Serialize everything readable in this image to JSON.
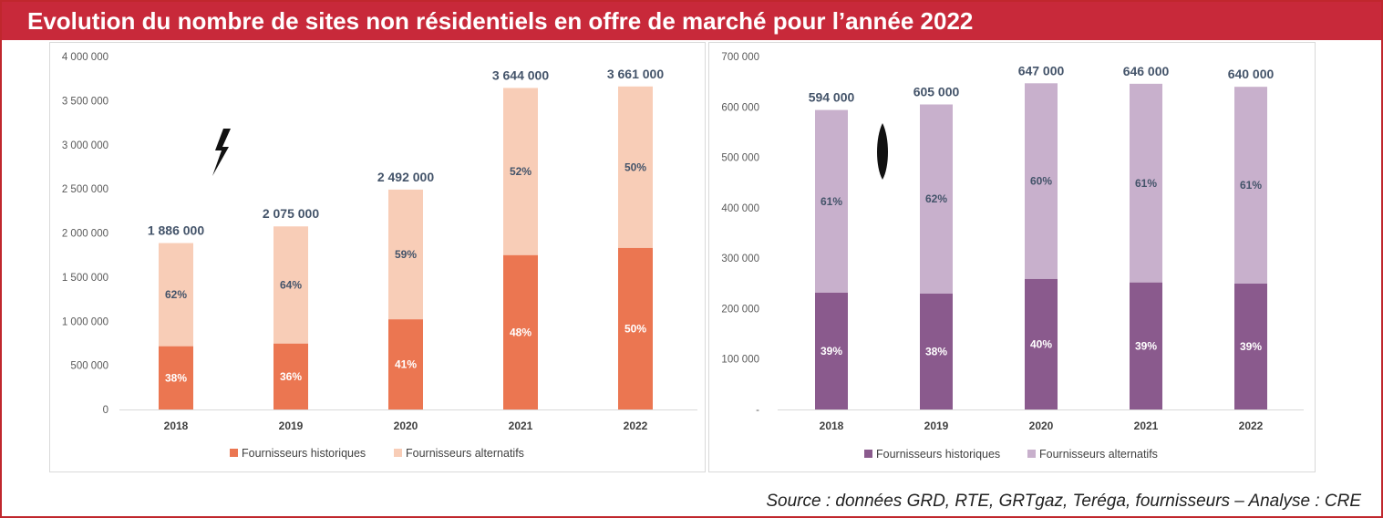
{
  "title": "Evolution du nombre de sites non résidentiels en offre de marché pour l’année 2022",
  "source": "Source : données GRD, RTE, GRTgaz, Teréga, fournisseurs – Analyse : CRE",
  "colors": {
    "frame": "#c0272d",
    "title_bg": "#c8293a",
    "elec_historiques": "#eb7651",
    "elec_alternatifs": "#f8cdb7",
    "gaz_historiques": "#8a5a8d",
    "gaz_alternatifs": "#c8b0cc",
    "total_label": "#44546a"
  },
  "chart_data": [
    {
      "type": "bar",
      "stacked": true,
      "icon": "lightning-bolt-icon",
      "categories": [
        "2018",
        "2019",
        "2020",
        "2021",
        "2022"
      ],
      "totals": [
        1886000,
        2075000,
        2492000,
        3644000,
        3661000
      ],
      "total_labels": [
        "1 886 000",
        "2 075 000",
        "2 492 000",
        "3 644 000",
        "3 661 000"
      ],
      "series": [
        {
          "name": "Fournisseurs historiques",
          "pct": [
            38,
            36,
            41,
            48,
            50
          ],
          "pct_labels": [
            "38%",
            "36%",
            "41%",
            "48%",
            "50%"
          ],
          "color": "#eb7651"
        },
        {
          "name": "Fournisseurs alternatifs",
          "pct": [
            62,
            64,
            59,
            52,
            50
          ],
          "pct_labels": [
            "62%",
            "64%",
            "59%",
            "52%",
            "50%"
          ],
          "color": "#f8cdb7"
        }
      ],
      "ylim": [
        0,
        4000000
      ],
      "yticks": [
        0,
        500000,
        1000000,
        1500000,
        2000000,
        2500000,
        3000000,
        3500000,
        4000000
      ],
      "ytick_labels": [
        "0",
        "500 000",
        "1 000 000",
        "1 500 000",
        "2 000 000",
        "2 500 000",
        "3 000 000",
        "3 500 000",
        "4 000 000"
      ],
      "legend": "bottom",
      "grid": false
    },
    {
      "type": "bar",
      "stacked": true,
      "icon": "flame-drop-icon",
      "categories": [
        "2018",
        "2019",
        "2020",
        "2021",
        "2022"
      ],
      "totals": [
        594000,
        605000,
        647000,
        646000,
        640000
      ],
      "total_labels": [
        "594 000",
        "605 000",
        "647 000",
        "646 000",
        "640 000"
      ],
      "series": [
        {
          "name": "Fournisseurs historiques",
          "pct": [
            39,
            38,
            40,
            39,
            39
          ],
          "pct_labels": [
            "39%",
            "38%",
            "40%",
            "39%",
            "39%"
          ],
          "color": "#8a5a8d"
        },
        {
          "name": "Fournisseurs alternatifs",
          "pct": [
            61,
            62,
            60,
            61,
            61
          ],
          "pct_labels": [
            "61%",
            "62%",
            "60%",
            "61%",
            "61%"
          ],
          "color": "#c8b0cc"
        }
      ],
      "ylim": [
        0,
        700000
      ],
      "yticks": [
        0,
        100000,
        200000,
        300000,
        400000,
        500000,
        600000,
        700000
      ],
      "ytick_labels": [
        "-",
        "100 000",
        "200 000",
        "300 000",
        "400 000",
        "500 000",
        "600 000",
        "700 000"
      ],
      "legend": "bottom",
      "grid": false
    }
  ]
}
